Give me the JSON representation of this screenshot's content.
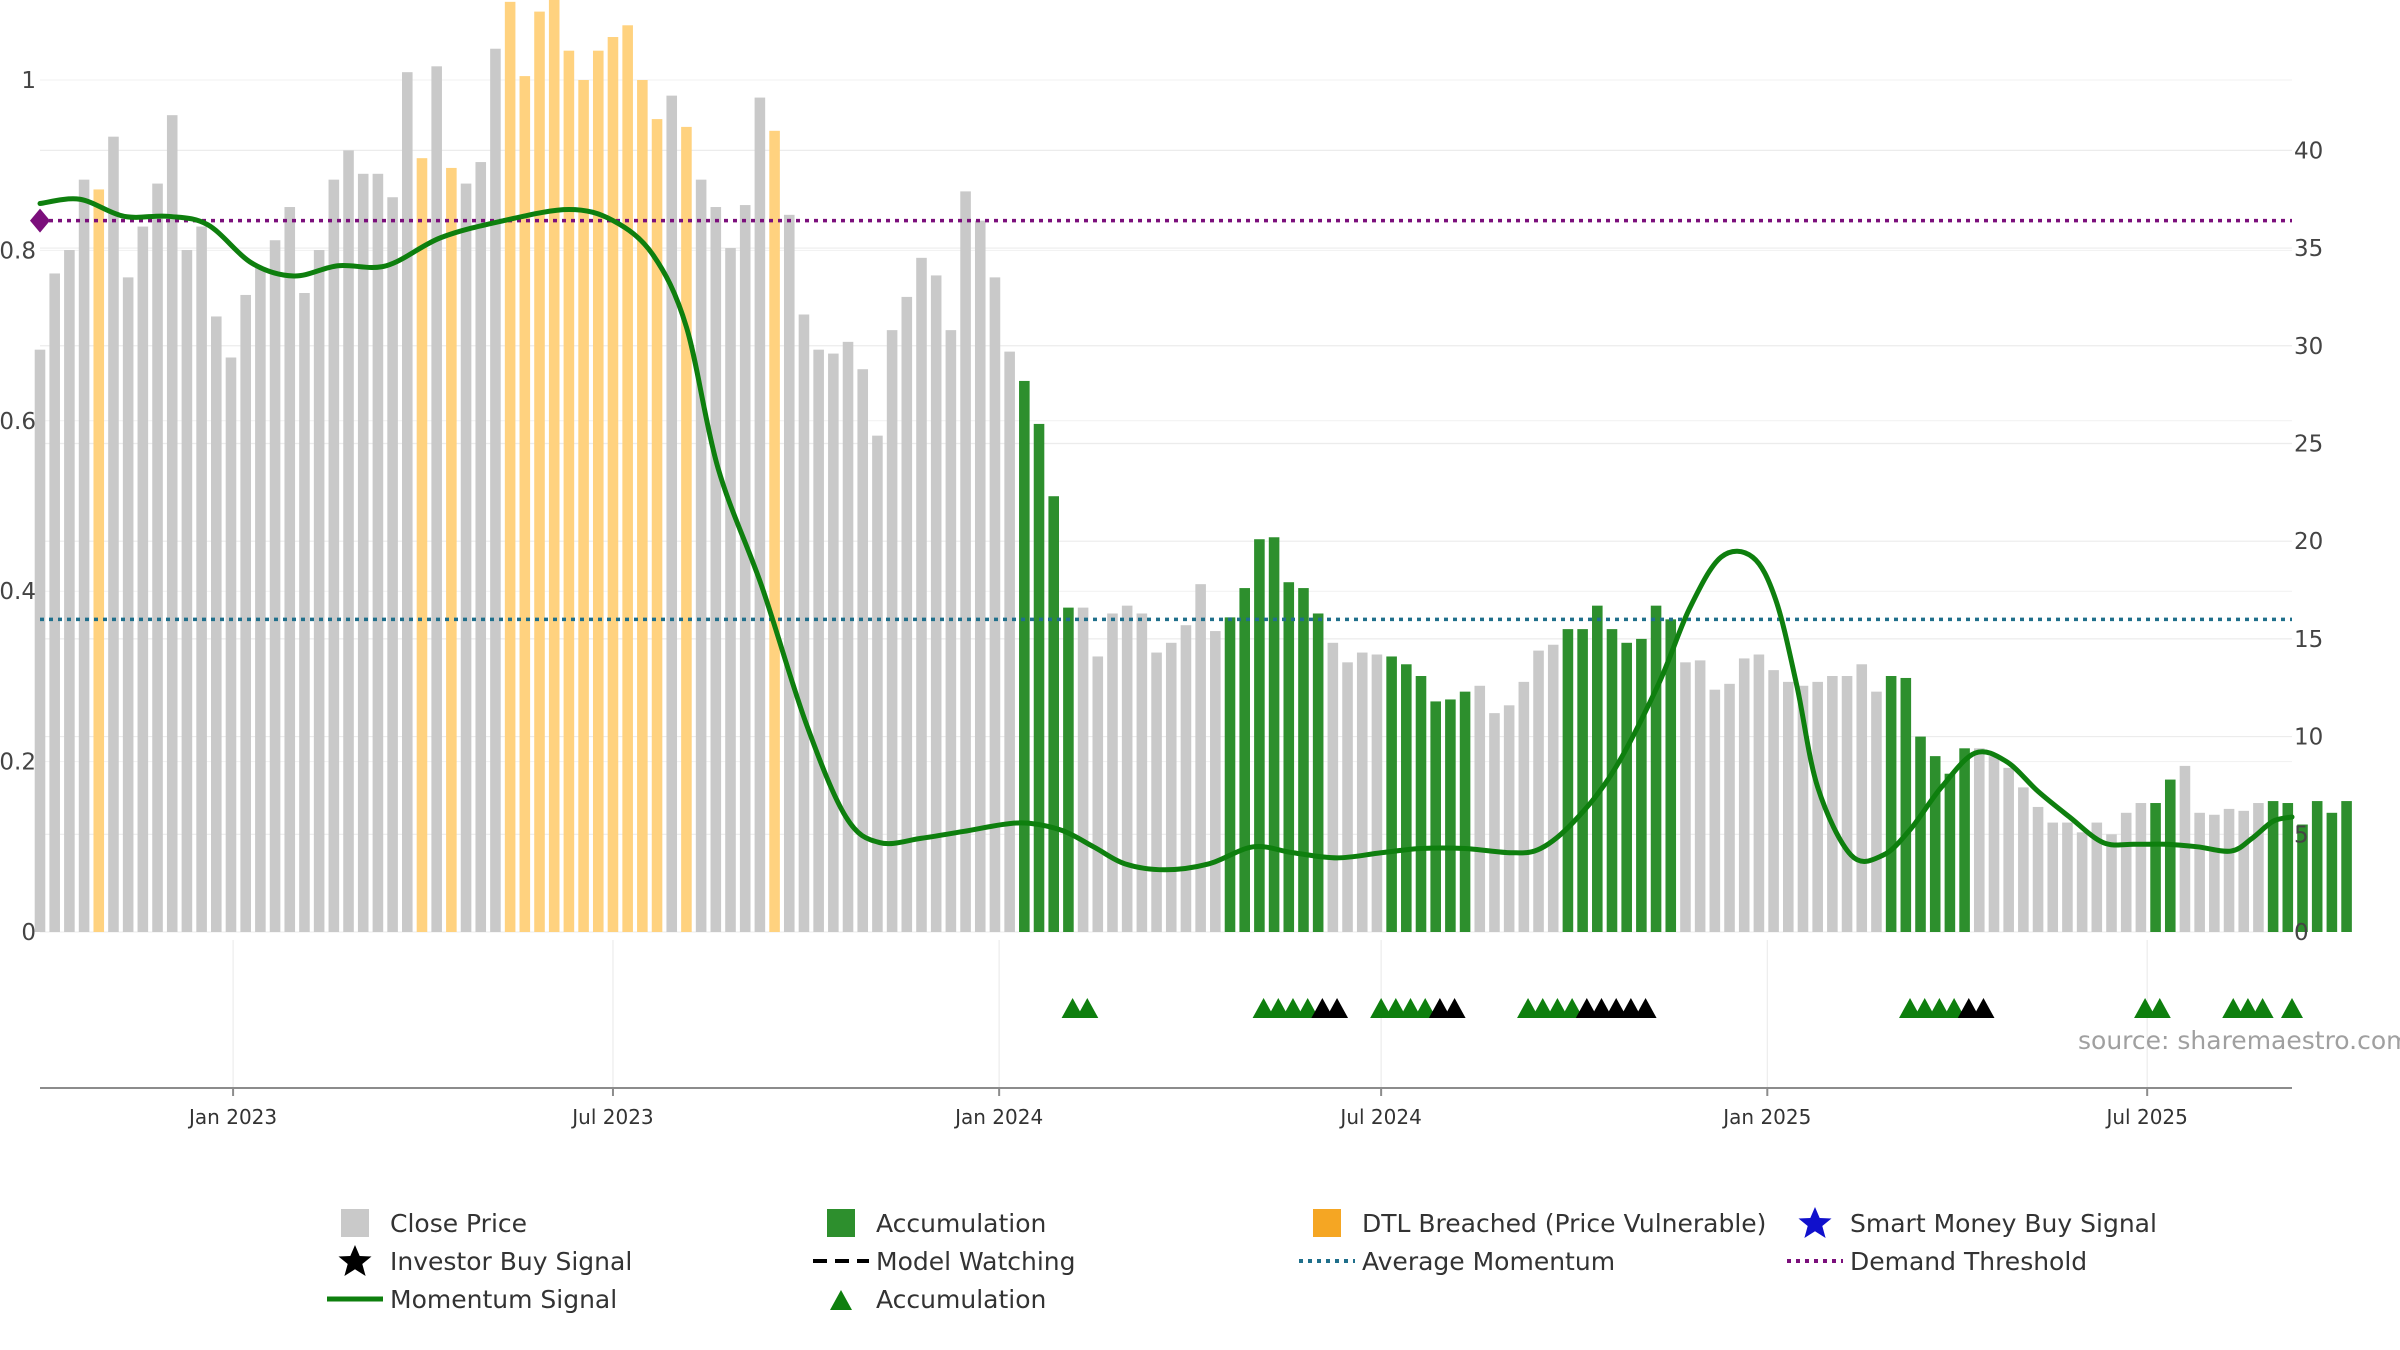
{
  "chart_data": {
    "type": "bar",
    "title": "",
    "left_axis": {
      "ticks": [
        "0",
        "0.2",
        "0.4",
        "0.6",
        "0.8",
        "1"
      ],
      "range": [
        0,
        1
      ]
    },
    "right_axis": {
      "ticks": [
        "0",
        "5",
        "10",
        "15",
        "20",
        "25",
        "30",
        "35",
        "40"
      ],
      "range": [
        0,
        43.6
      ]
    },
    "x_ticks": [
      "Jan 2023",
      "Jul 2023",
      "Jan 2024",
      "Jul 2024",
      "Jan 2025",
      "Jul 2025"
    ],
    "x_range": [
      "2022-10-01",
      "2025-09-08"
    ],
    "grid": true,
    "legend_position": "bottom",
    "source": "source: sharemaestro.com",
    "colors": {
      "close": "#c9c9c9",
      "accumulation": "#2d8f2d",
      "dtl": "#ffd27f",
      "momentum": "#0e7f0e",
      "average": "#1f6f8b",
      "demand": "#7b0f7b",
      "investor": "#000000",
      "smart": "#1010cc"
    },
    "close_price": {
      "start": "2022-10-01",
      "step_days": 7,
      "values": [
        29.8,
        33.7,
        34.9,
        38.5,
        38.0,
        40.7,
        33.5,
        36.1,
        38.3,
        41.8,
        34.9,
        36.1,
        31.5,
        29.4,
        32.6,
        34.0,
        35.4,
        37.1,
        32.7,
        34.9,
        38.5,
        40.0,
        38.8,
        38.8,
        37.6,
        44.0,
        39.6,
        44.3,
        39.1,
        38.3,
        39.4,
        45.2,
        47.6,
        43.8,
        47.1,
        48.2,
        45.1,
        43.6,
        45.1,
        45.8,
        46.4,
        43.6,
        41.6,
        42.8,
        41.2,
        38.5,
        37.1,
        35.0,
        37.2,
        42.7,
        41.0,
        36.7,
        31.6,
        29.8,
        29.6,
        30.2,
        28.8,
        25.4,
        30.8,
        32.5,
        34.5,
        33.6,
        30.8,
        37.9,
        36.4,
        33.5,
        29.7,
        28.2,
        26.0,
        22.3,
        16.6,
        16.6,
        14.1,
        16.3,
        16.7,
        16.3,
        14.3,
        14.8,
        15.7,
        17.8,
        15.4,
        16.1,
        17.6,
        20.1,
        20.2,
        17.9,
        17.6,
        16.3,
        14.8,
        13.8,
        14.3,
        14.2,
        14.1,
        13.7,
        13.1,
        11.8,
        11.9,
        12.3,
        12.6,
        11.2,
        11.6,
        12.8,
        14.4,
        14.7,
        15.5,
        15.5,
        16.7,
        15.5,
        14.8,
        15.0,
        16.7,
        16.0,
        13.8,
        13.9,
        12.4,
        12.7,
        14.0,
        14.2,
        13.4,
        12.8,
        12.6,
        12.8,
        13.1,
        13.1,
        13.7,
        12.3,
        13.1,
        13.0,
        10.0,
        9.0,
        8.1,
        9.4,
        9.4,
        9.0,
        8.4,
        7.4,
        6.4,
        5.6,
        5.6,
        5.1,
        5.6,
        5.0,
        6.1,
        6.6,
        6.6,
        7.8,
        8.5,
        6.1,
        6.0,
        6.3,
        6.2,
        6.6,
        6.7,
        6.6,
        5.5,
        6.7,
        6.1,
        6.7
      ]
    },
    "accumulation_weeks": [
      [
        67,
        70
      ],
      [
        81,
        87
      ],
      [
        92,
        97
      ],
      [
        104,
        111
      ],
      [
        126,
        131
      ],
      [
        144,
        145
      ],
      [
        152,
        157
      ]
    ],
    "dtl_weeks": [
      4,
      26,
      28,
      32,
      33,
      34,
      35,
      36,
      37,
      38,
      39,
      40,
      41,
      42,
      44,
      50
    ],
    "momentum_signal": {
      "x": [
        "2022-10-01",
        "2022-10-20",
        "2022-11-10",
        "2022-12-01",
        "2022-12-20",
        "2023-01-10",
        "2023-01-30",
        "2023-02-20",
        "2023-03-15",
        "2023-04-10",
        "2023-05-10",
        "2023-06-10",
        "2023-07-01",
        "2023-07-20",
        "2023-08-05",
        "2023-08-20",
        "2023-09-10",
        "2023-10-01",
        "2023-10-20",
        "2023-11-05",
        "2023-11-25",
        "2023-12-15",
        "2024-01-10",
        "2024-01-30",
        "2024-02-15",
        "2024-03-01",
        "2024-03-20",
        "2024-04-10",
        "2024-05-01",
        "2024-05-20",
        "2024-06-10",
        "2024-07-01",
        "2024-07-20",
        "2024-08-10",
        "2024-09-01",
        "2024-09-15",
        "2024-10-01",
        "2024-10-20",
        "2024-11-10",
        "2024-11-25",
        "2024-12-10",
        "2024-12-25",
        "2025-01-05",
        "2025-01-15",
        "2025-01-25",
        "2025-02-10",
        "2025-02-25",
        "2025-03-10",
        "2025-03-25",
        "2025-04-10",
        "2025-04-25",
        "2025-05-10",
        "2025-05-25",
        "2025-06-10",
        "2025-06-25",
        "2025-07-10",
        "2025-07-25",
        "2025-08-10",
        "2025-08-20",
        "2025-08-30",
        "2025-09-08"
      ],
      "y": [
        0.855,
        0.86,
        0.84,
        0.84,
        0.83,
        0.785,
        0.77,
        0.782,
        0.782,
        0.815,
        0.835,
        0.848,
        0.835,
        0.795,
        0.71,
        0.545,
        0.405,
        0.245,
        0.135,
        0.105,
        0.11,
        0.118,
        0.128,
        0.12,
        0.1,
        0.08,
        0.073,
        0.08,
        0.1,
        0.093,
        0.087,
        0.093,
        0.098,
        0.098,
        0.093,
        0.098,
        0.13,
        0.19,
        0.29,
        0.38,
        0.44,
        0.44,
        0.39,
        0.29,
        0.17,
        0.09,
        0.09,
        0.12,
        0.17,
        0.21,
        0.2,
        0.165,
        0.135,
        0.105,
        0.103,
        0.103,
        0.1,
        0.095,
        0.11,
        0.13,
        0.135
      ]
    },
    "average_momentum": 0.367,
    "demand_threshold": 0.835,
    "accumulation_markers": [
      "2024-02-05",
      "2024-02-12",
      "2024-05-06",
      "2024-05-13",
      "2024-05-20",
      "2024-05-27",
      "2024-07-01",
      "2024-07-08",
      "2024-07-15",
      "2024-07-22",
      "2024-09-09",
      "2024-09-16",
      "2024-09-23",
      "2024-09-30",
      "2025-03-10",
      "2025-03-17",
      "2025-03-24",
      "2025-03-31",
      "2025-06-30",
      "2025-07-07",
      "2025-08-11",
      "2025-08-18",
      "2025-08-25",
      "2025-09-08"
    ],
    "investor_markers": [
      "2024-06-03",
      "2024-06-10",
      "2024-07-29",
      "2024-08-05",
      "2024-10-07",
      "2024-10-14",
      "2024-10-21",
      "2024-10-28",
      "2024-11-04",
      "2025-04-07",
      "2025-04-14"
    ],
    "legend": [
      {
        "label": "Close Price",
        "symbol": "square-gray"
      },
      {
        "label": "Accumulation",
        "symbol": "square-green"
      },
      {
        "label": "DTL Breached (Price Vulnerable)",
        "symbol": "square-orange"
      },
      {
        "label": "Smart Money Buy Signal",
        "symbol": "star-blue"
      },
      {
        "label": "Investor Buy Signal",
        "symbol": "star-black"
      },
      {
        "label": "Model Watching",
        "symbol": "dash-black"
      },
      {
        "label": "Average Momentum",
        "symbol": "dot-teal"
      },
      {
        "label": "Demand Threshold",
        "symbol": "dot-purple"
      },
      {
        "label": "Momentum Signal",
        "symbol": "line-green"
      },
      {
        "label": "Accumulation",
        "symbol": "triangle-green"
      }
    ]
  }
}
